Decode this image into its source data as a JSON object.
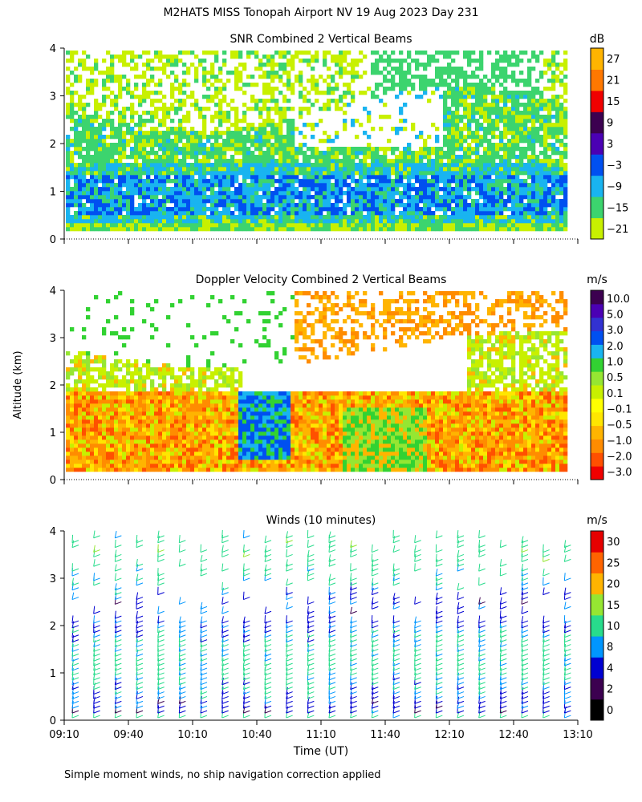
{
  "page_title": "M2HATS MISS Tonopah Airport NV  19 Aug 2023 Day 231",
  "y_axis_label": "Altitude (km)",
  "footnote": "Simple moment winds, no ship navigation correction applied",
  "colors": {
    "snr_scale": [
      "#c8f000",
      "#3cd46e",
      "#19b4f0",
      "#0050f0",
      "#4b00b4",
      "#3c0050",
      "#f00000",
      "#ff7800",
      "#ffb400"
    ],
    "velocity_scale": [
      "#f00000",
      "#ff5000",
      "#ff8c00",
      "#ffb400",
      "#ffe600",
      "#ffff00",
      "#c8f000",
      "#96e632",
      "#32d232",
      "#19b4f0",
      "#0050f0",
      "#3232d2",
      "#4b00b4",
      "#3c0050"
    ],
    "wind_scale": [
      "#000000",
      "#3c0050",
      "#0000d2",
      "#0096ff",
      "#28dc8c",
      "#96e632",
      "#ffb400",
      "#ff6400",
      "#e60000"
    ]
  },
  "chart_data": [
    {
      "type": "heatmap",
      "title": "SNR Combined 2 Vertical Beams",
      "units": "dB",
      "colorbar_ticks": [
        "27",
        "21",
        "15",
        "9",
        "3",
        "−3",
        "−9",
        "−15",
        "−21"
      ],
      "y_ticks": [
        "0",
        "1",
        "2",
        "3",
        "4"
      ],
      "ylim": [
        0,
        4
      ],
      "xlim": [
        "09:10",
        "13:10"
      ],
      "layers": [
        {
          "altitude_range_km": [
            0.1,
            1.6
          ],
          "snr_db": -8
        },
        {
          "altitude_range_km": [
            0.4,
            1.2
          ],
          "snr_db": -2
        },
        {
          "altitude_range_km": [
            1.6,
            2.7
          ],
          "snr_db": -15
        },
        {
          "altitude_range_km": [
            2.7,
            4.0
          ],
          "snr_db": -20
        }
      ]
    },
    {
      "type": "heatmap",
      "title": "Doppler Velocity Combined 2 Vertical Beams",
      "units": "m/s",
      "colorbar_ticks": [
        "10.0",
        "5.0",
        "3.0",
        "2.0",
        "1.0",
        "0.5",
        "0.1",
        "−0.1",
        "−0.5",
        "−1.0",
        "−2.0",
        "−3.0"
      ],
      "y_ticks": [
        "0",
        "1",
        "2",
        "3",
        "4"
      ],
      "ylim": [
        0,
        4
      ],
      "xlim": [
        "09:10",
        "13:10"
      ],
      "layers": [
        {
          "altitude_range_km": [
            0.1,
            1.8
          ],
          "velocity_ms": -0.7
        },
        {
          "altitude_range_km": [
            1.8,
            2.7
          ],
          "velocity_ms": 0.2
        },
        {
          "altitude_range_km": [
            2.7,
            4.0
          ],
          "velocity_ms": -0.6
        }
      ],
      "updraft_event": {
        "time_range": [
          "10:30",
          "10:55"
        ],
        "velocity_ms": 2.0
      }
    },
    {
      "type": "scatter",
      "title": "Winds (10 minutes)",
      "units": "m/s",
      "colorbar_ticks": [
        "30",
        "25",
        "20",
        "15",
        "10",
        "8",
        "4",
        "2",
        "0"
      ],
      "y_ticks": [
        "0",
        "1",
        "2",
        "3",
        "4"
      ],
      "ylim": [
        0,
        4
      ],
      "x_ticks": [
        "09:10",
        "09:40",
        "10:10",
        "10:40",
        "11:10",
        "11:40",
        "12:10",
        "12:40",
        "13:10"
      ],
      "xlabel": "Time (UT)",
      "profile_interval_min": 10,
      "profile_times": [
        "09:10",
        "09:20",
        "09:30",
        "09:40",
        "09:50",
        "10:00",
        "10:10",
        "10:20",
        "10:30",
        "10:40",
        "10:50",
        "11:00",
        "11:10",
        "11:20",
        "11:30",
        "11:40",
        "11:50",
        "12:00",
        "12:10",
        "12:20",
        "12:30",
        "12:40",
        "12:50",
        "13:00"
      ],
      "approx_speed_profile": [
        {
          "altitude_km": 0.1,
          "speed_ms": 5
        },
        {
          "altitude_km": 0.5,
          "speed_ms": 8
        },
        {
          "altitude_km": 1.0,
          "speed_ms": 12
        },
        {
          "altitude_km": 1.5,
          "speed_ms": 12
        },
        {
          "altitude_km": 2.0,
          "speed_ms": 7
        },
        {
          "altitude_km": 2.5,
          "speed_ms": 6
        },
        {
          "altitude_km": 3.0,
          "speed_ms": 12
        },
        {
          "altitude_km": 3.5,
          "speed_ms": 13
        },
        {
          "altitude_km": 3.8,
          "speed_ms": 12
        }
      ]
    }
  ]
}
